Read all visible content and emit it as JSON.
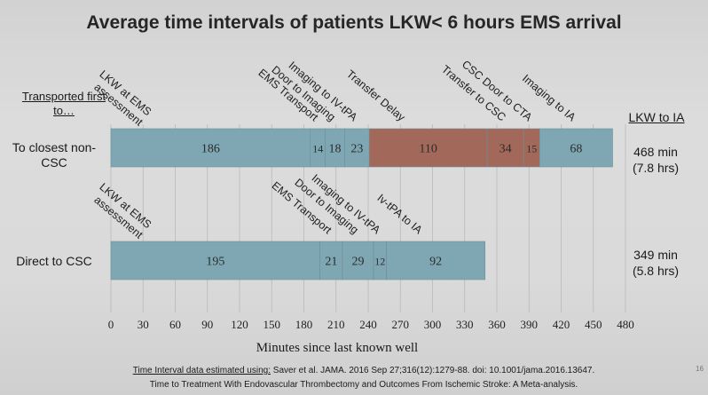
{
  "title": "Average time intervals of patients LKW< 6 hours EMS arrival",
  "row_header": "Transported first to…",
  "total_header": "LKW to IA",
  "page_number": "16",
  "footnote": {
    "line1_prefix": "Time Interval data estimated using:",
    "line1_link": "Saver et al. JAMA. 2016 Sep 27;316(12):1279-88. doi: 10.1001/jama.2016.13647.",
    "line2": "Time to Treatment With Endovascular Thrombectomy and Outcomes From Ischemic Stroke: A Meta-analysis."
  },
  "colors": {
    "teal": "#7ea7b3",
    "brown": "#a2695a",
    "text": "#1a1a1a"
  },
  "chart_data": {
    "type": "bar",
    "orientation": "horizontal",
    "stacked": true,
    "xlabel": "Minutes since last known well",
    "xlim": [
      0,
      480
    ],
    "xticks": [
      0,
      30,
      60,
      90,
      120,
      150,
      180,
      210,
      240,
      270,
      300,
      330,
      360,
      390,
      420,
      450,
      480
    ],
    "grid": true,
    "rows": [
      {
        "label": "To closest non-CSC",
        "total_label": "468 min",
        "total_sub": "(7.8 hrs)",
        "segments": [
          {
            "name": "LKW at EMS assessment",
            "value": 186,
            "color": "teal"
          },
          {
            "name": "EMS Transport",
            "value": 14,
            "color": "teal"
          },
          {
            "name": "Door to Imaging",
            "value": 18,
            "color": "teal"
          },
          {
            "name": "Imaging to IV-tPA",
            "value": 23,
            "color": "teal"
          },
          {
            "name": "Transfer Delay",
            "value": 110,
            "color": "brown"
          },
          {
            "name": "Transfer to CSC",
            "value": 34,
            "color": "brown"
          },
          {
            "name": "CSC Door to CTA",
            "value": 15,
            "color": "brown"
          },
          {
            "name": "Imaging to IA",
            "value": 68,
            "color": "teal"
          }
        ]
      },
      {
        "label": "Direct to CSC",
        "total_label": "349 min",
        "total_sub": "(5.8 hrs)",
        "segments": [
          {
            "name": "LKW at EMS assessment",
            "value": 195,
            "color": "teal"
          },
          {
            "name": "EMS Transport",
            "value": 21,
            "color": "teal"
          },
          {
            "name": "Door to Imaging",
            "value": 29,
            "color": "teal"
          },
          {
            "name": "Imaging to IV-tPA",
            "value": 12,
            "color": "teal"
          },
          {
            "name": "Iv-tPA to IA",
            "value": 92,
            "color": "teal"
          }
        ]
      }
    ]
  }
}
